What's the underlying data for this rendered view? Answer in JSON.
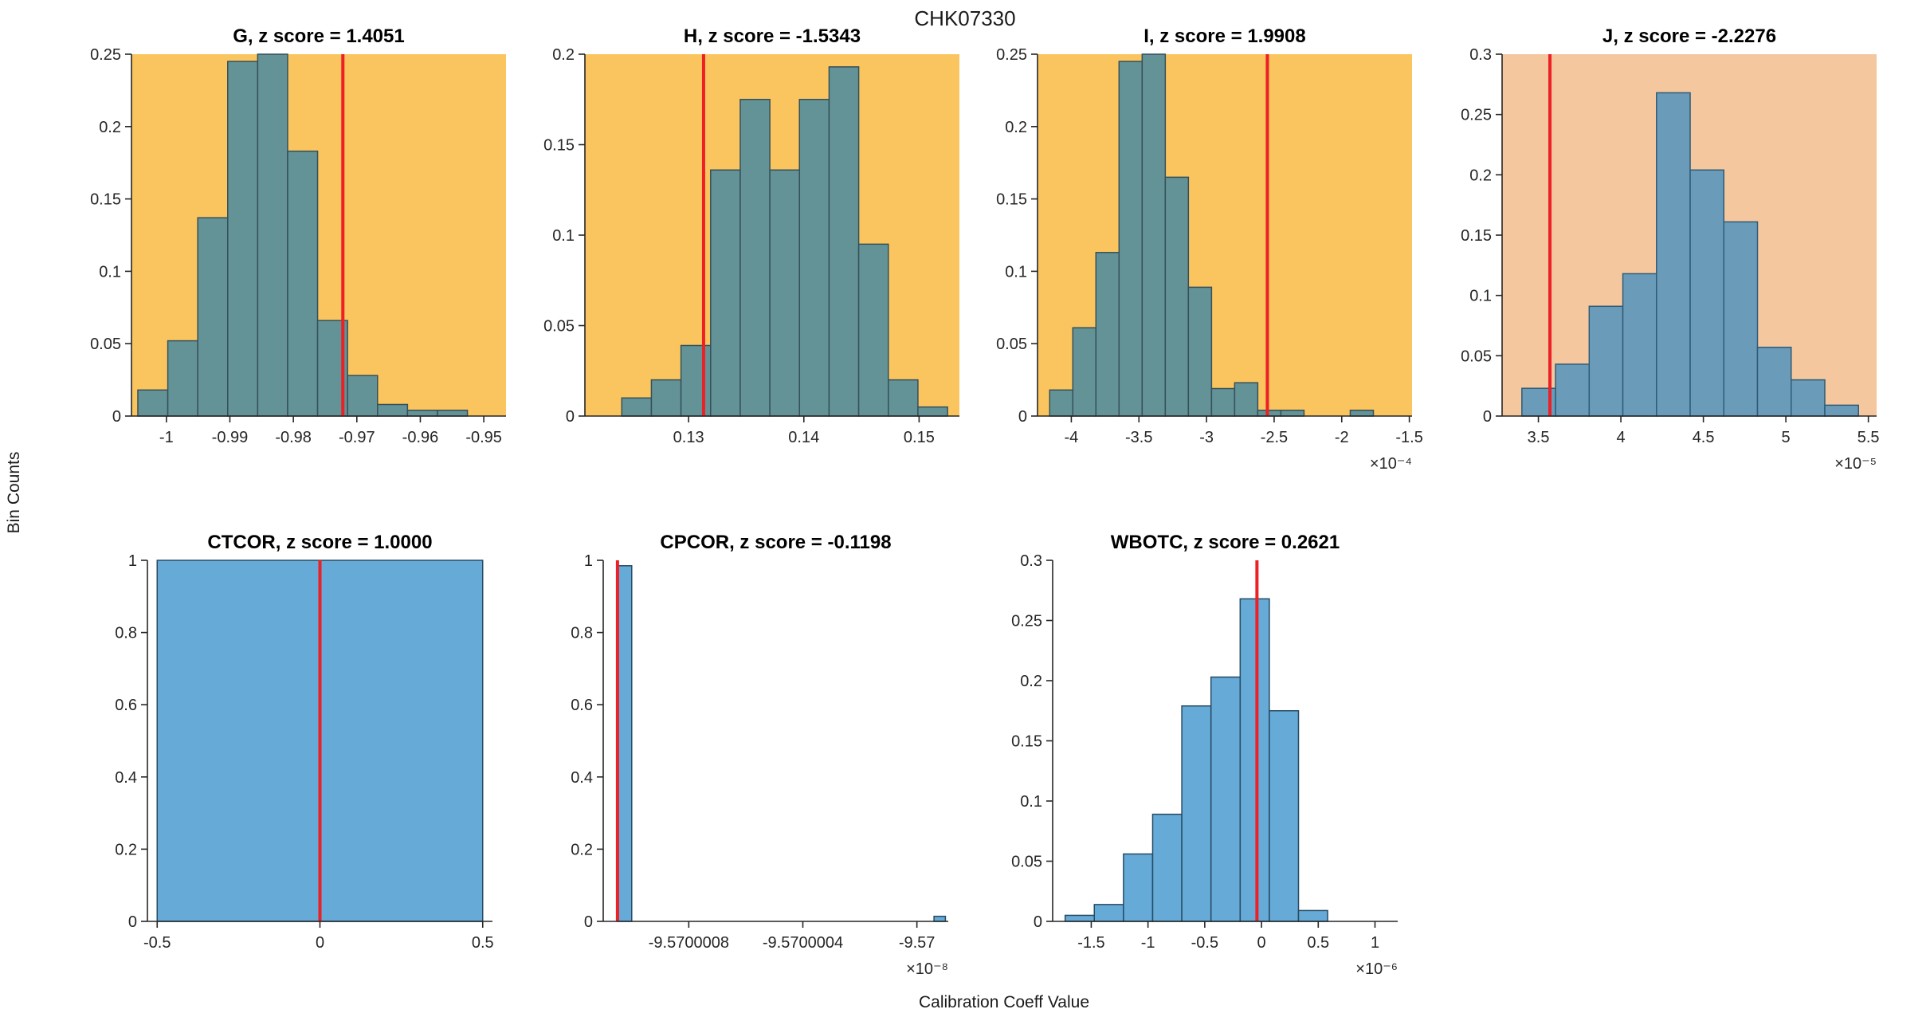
{
  "figure": {
    "title": "CHK07330",
    "xlabel": "Calibration Coeff Value",
    "ylabel": "Bin Counts"
  },
  "colors": {
    "red_line": "#EC2025",
    "axis": "#262626",
    "orange_bg": "#FAC55F",
    "peach_bg": "#F5C79E",
    "teal_bar": "#639397",
    "blue_bar": "#66AAD7",
    "peach_blue_bar": "#6A9CB9"
  },
  "chart_data": [
    {
      "type": "bar",
      "name": "G",
      "title": "G, z score = 1.4051",
      "bg": "#FAC55F",
      "bar_color": "#639397",
      "edge_color": "#36505A",
      "xlim": [
        -1.0055,
        -0.9465
      ],
      "ylim": [
        0,
        0.25
      ],
      "bin_start": -1.0045,
      "bin_width": 0.00472,
      "heights": [
        0.018,
        0.052,
        0.137,
        0.245,
        0.25,
        0.183,
        0.066,
        0.028,
        0.008,
        0.004,
        0.004
      ],
      "vline": -0.9722,
      "xticks": [
        -1,
        -0.99,
        -0.98,
        -0.97,
        -0.96,
        -0.95
      ],
      "xtick_labels": [
        "-1",
        "-0.99",
        "-0.98",
        "-0.97",
        "-0.96",
        "-0.95"
      ],
      "yticks": [
        0,
        0.05,
        0.1,
        0.15,
        0.2,
        0.25
      ],
      "ytick_labels": [
        "0",
        "0.05",
        "0.1",
        "0.15",
        "0.2",
        "0.25"
      ],
      "exponent": ""
    },
    {
      "type": "bar",
      "name": "H",
      "title": "H, z score = -1.5343",
      "bg": "#FAC55F",
      "bar_color": "#639397",
      "edge_color": "#36505A",
      "xlim": [
        0.121,
        0.1535
      ],
      "ylim": [
        0,
        0.2
      ],
      "bin_start": 0.1242,
      "bin_width": 0.00257,
      "heights": [
        0.01,
        0.02,
        0.039,
        0.136,
        0.175,
        0.136,
        0.175,
        0.193,
        0.095,
        0.02,
        0.005
      ],
      "vline": 0.1313,
      "xticks": [
        0.13,
        0.14,
        0.15
      ],
      "xtick_labels": [
        "0.13",
        "0.14",
        "0.15"
      ],
      "yticks": [
        0,
        0.05,
        0.1,
        0.15,
        0.2
      ],
      "ytick_labels": [
        "0",
        "0.05",
        "0.1",
        "0.15",
        "0.2"
      ],
      "exponent": ""
    },
    {
      "type": "bar",
      "name": "I",
      "title": "I, z score = 1.9908",
      "bg": "#FAC55F",
      "bar_color": "#639397",
      "edge_color": "#36505A",
      "xlim": [
        -0.000425,
        -0.000148
      ],
      "ylim": [
        0,
        0.25
      ],
      "bin_start": -0.000416,
      "bin_width": 1.71e-05,
      "heights": [
        0.018,
        0.061,
        0.113,
        0.245,
        0.25,
        0.165,
        0.089,
        0.019,
        0.023,
        0.004,
        0.004,
        0,
        0,
        0.004
      ],
      "vline": -0.000255,
      "xticks": [
        -0.0004,
        -0.00035,
        -0.0003,
        -0.00025,
        -0.0002,
        -0.00015
      ],
      "xtick_labels": [
        "-4",
        "-3.5",
        "-3",
        "-2.5",
        "-2",
        "-1.5"
      ],
      "yticks": [
        0,
        0.05,
        0.1,
        0.15,
        0.2,
        0.25
      ],
      "ytick_labels": [
        "0",
        "0.05",
        "0.1",
        "0.15",
        "0.2",
        "0.25"
      ],
      "exponent": "×10⁻⁴"
    },
    {
      "type": "bar",
      "name": "J",
      "title": "J, z score = -2.2276",
      "bg": "#F5C79E",
      "bar_color": "#6A9CB9",
      "edge_color": "#2F5B77",
      "xlim": [
        3.28e-05,
        5.55e-05
      ],
      "ylim": [
        0,
        0.3
      ],
      "bin_start": 3.4e-05,
      "bin_width": 2.04e-06,
      "heights": [
        0.023,
        0.043,
        0.091,
        0.118,
        0.268,
        0.204,
        0.161,
        0.057,
        0.03,
        0.009
      ],
      "vline": 3.57e-05,
      "xticks": [
        3.5e-05,
        4e-05,
        4.5e-05,
        5e-05,
        5.5e-05
      ],
      "xtick_labels": [
        "3.5",
        "4",
        "4.5",
        "5",
        "5.5"
      ],
      "yticks": [
        0,
        0.05,
        0.1,
        0.15,
        0.2,
        0.25,
        0.3
      ],
      "ytick_labels": [
        "0",
        "0.05",
        "0.1",
        "0.15",
        "0.2",
        "0.25",
        "0.3"
      ],
      "exponent": "×10⁻⁵"
    },
    {
      "type": "bar",
      "name": "CTCOR",
      "title": "CTCOR, z score = 1.0000",
      "bg": "",
      "bar_color": "#66AAD7",
      "edge_color": "#274B63",
      "xlim": [
        -0.53,
        0.53
      ],
      "ylim": [
        0,
        1
      ],
      "bars": [
        [
          -0.5,
          0.5,
          1
        ]
      ],
      "vline": 0,
      "xticks": [
        -0.5,
        0,
        0.5
      ],
      "xtick_labels": [
        "-0.5",
        "0",
        "0.5"
      ],
      "yticks": [
        0,
        0.2,
        0.4,
        0.6,
        0.8,
        1
      ],
      "ytick_labels": [
        "0",
        "0.2",
        "0.4",
        "0.6",
        "0.8",
        "1"
      ],
      "exponent": ""
    },
    {
      "type": "bar",
      "name": "CPCOR",
      "title": "CPCOR, z score = -0.1198",
      "bg": "",
      "bar_color": "#66AAD7",
      "edge_color": "#274B63",
      "xlim": [
        -9.5700011e-08,
        -9.56999989e-08
      ],
      "ylim": [
        0,
        1
      ],
      "bars": [
        [
          -9.57000105e-08,
          -9.570001e-08,
          0.985
        ],
        [
          -9.56999994e-08,
          -9.5699999e-08,
          0.014
        ]
      ],
      "vline": -9.57000105e-08,
      "xticks": [
        -9.5700008e-08,
        -9.5700004e-08,
        -9.57e-08
      ],
      "xtick_labels": [
        "-9.5700008",
        "-9.5700004",
        "-9.57"
      ],
      "yticks": [
        0,
        0.2,
        0.4,
        0.6,
        0.8,
        1
      ],
      "ytick_labels": [
        "0",
        "0.2",
        "0.4",
        "0.6",
        "0.8",
        "1"
      ],
      "exponent": "×10⁻⁸"
    },
    {
      "type": "bar",
      "name": "WBOTC",
      "title": "WBOTC, z score = 0.2621",
      "bg": "",
      "bar_color": "#66AAD7",
      "edge_color": "#274B63",
      "xlim": [
        -1.84e-06,
        1.2e-06
      ],
      "ylim": [
        0,
        0.3
      ],
      "bin_start": -1.73e-06,
      "bin_width": 2.57e-07,
      "heights": [
        0.005,
        0.014,
        0.056,
        0.089,
        0.179,
        0.203,
        0.268,
        0.175,
        0.009
      ],
      "vline": -4e-08,
      "xticks": [
        -1.5e-06,
        -1e-06,
        -5e-07,
        0,
        5e-07,
        1e-06
      ],
      "xtick_labels": [
        "-1.5",
        "-1",
        "-0.5",
        "0",
        "0.5",
        "1"
      ],
      "yticks": [
        0,
        0.05,
        0.1,
        0.15,
        0.2,
        0.25,
        0.3
      ],
      "ytick_labels": [
        "0",
        "0.05",
        "0.1",
        "0.15",
        "0.2",
        "0.25",
        "0.3"
      ],
      "exponent": "×10⁻⁶"
    }
  ]
}
